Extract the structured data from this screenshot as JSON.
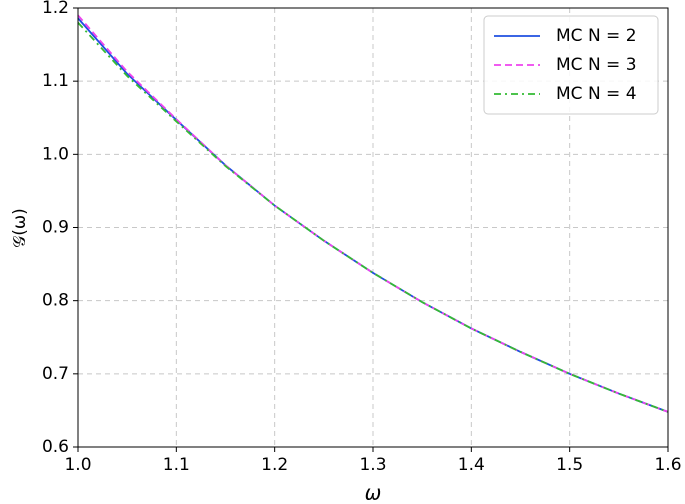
{
  "chart_data": {
    "type": "line",
    "x_label": "ω",
    "y_label": "𝒢(ω)",
    "x": [
      1.0,
      1.05,
      1.1,
      1.15,
      1.2,
      1.25,
      1.3,
      1.35,
      1.4,
      1.45,
      1.5,
      1.55,
      1.6
    ],
    "series": [
      {
        "name": "MC N = 2",
        "color": "#1f4fe0",
        "dash": "none",
        "values": [
          1.186,
          1.11,
          1.047,
          0.985,
          0.93,
          0.882,
          0.838,
          0.798,
          0.762,
          0.73,
          0.7,
          0.673,
          0.648
        ]
      },
      {
        "name": "MC N = 3",
        "color": "#ee44ee",
        "dash": "7 4",
        "values": [
          1.19,
          1.113,
          1.048,
          0.985,
          0.93,
          0.882,
          0.838,
          0.798,
          0.762,
          0.73,
          0.7,
          0.673,
          0.648
        ]
      },
      {
        "name": "MC N = 4",
        "color": "#33bb33",
        "dash": "7 4 2 4",
        "values": [
          1.18,
          1.107,
          1.045,
          0.984,
          0.93,
          0.882,
          0.838,
          0.798,
          0.762,
          0.73,
          0.7,
          0.673,
          0.648
        ]
      }
    ],
    "xlim": [
      1.0,
      1.6
    ],
    "ylim": [
      0.6,
      1.2
    ],
    "xticks": [
      {
        "value": 1.0,
        "label": "1.0"
      },
      1.1,
      1.2,
      1.3,
      1.4,
      1.5,
      1.6
    ],
    "yticks": [
      0.6,
      0.7,
      0.8,
      0.9,
      {
        "value": 1.0,
        "label": "1.0"
      },
      1.1,
      1.2
    ],
    "grid": true,
    "legend": "upper right"
  }
}
